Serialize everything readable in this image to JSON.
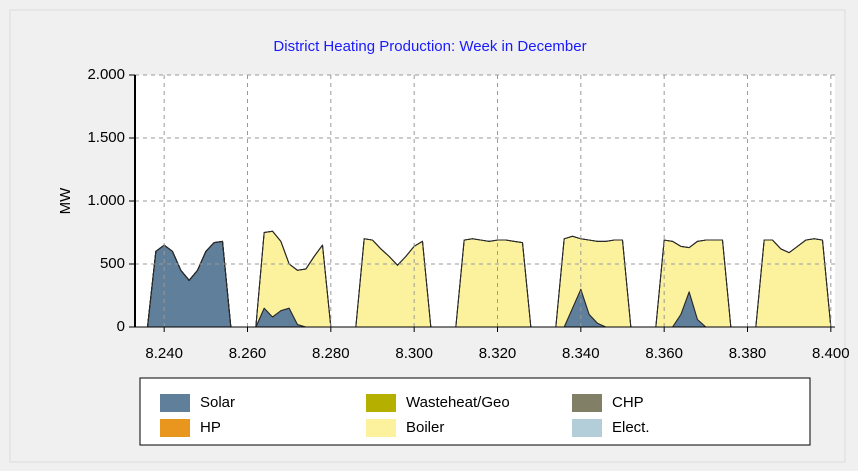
{
  "chart_data": {
    "type": "stacked_area",
    "title": "District Heating Production: Week in December",
    "y_label": "MW",
    "x": [
      8234,
      8236,
      8238,
      8240,
      8242,
      8244,
      8246,
      8248,
      8250,
      8252,
      8254,
      8256,
      8258,
      8260,
      8262,
      8264,
      8266,
      8268,
      8270,
      8272,
      8274,
      8276,
      8278,
      8280,
      8282,
      8284,
      8286,
      8288,
      8290,
      8292,
      8294,
      8296,
      8298,
      8300,
      8302,
      8304,
      8306,
      8308,
      8310,
      8312,
      8314,
      8316,
      8318,
      8320,
      8322,
      8324,
      8326,
      8328,
      8330,
      8332,
      8334,
      8336,
      8338,
      8340,
      8342,
      8344,
      8346,
      8348,
      8350,
      8352,
      8354,
      8356,
      8358,
      8360,
      8362,
      8364,
      8366,
      8368,
      8370,
      8372,
      8374,
      8376,
      8378,
      8380,
      8382,
      8384,
      8386,
      8388,
      8390,
      8392,
      8394,
      8396,
      8398,
      8400
    ],
    "series": [
      {
        "name": "Solar",
        "color": "#5f7f9b",
        "values": [
          0,
          0,
          600,
          650,
          600,
          450,
          370,
          450,
          600,
          670,
          680,
          0,
          0,
          0,
          0,
          150,
          80,
          130,
          150,
          20,
          0,
          0,
          0,
          0,
          0,
          0,
          0,
          0,
          0,
          0,
          0,
          0,
          0,
          0,
          0,
          0,
          0,
          0,
          0,
          0,
          0,
          0,
          0,
          0,
          0,
          0,
          0,
          0,
          0,
          0,
          0,
          0,
          150,
          300,
          100,
          30,
          0,
          0,
          0,
          0,
          0,
          0,
          0,
          0,
          0,
          100,
          280,
          60,
          0,
          0,
          0,
          0,
          0,
          0,
          0,
          0,
          0,
          0,
          0,
          0,
          0,
          0,
          0,
          0
        ]
      },
      {
        "name": "HP",
        "color": "#e8961e",
        "values": [
          0,
          0,
          0,
          0,
          0,
          0,
          0,
          0,
          0,
          0,
          0,
          0,
          0,
          0,
          0,
          0,
          0,
          0,
          0,
          0,
          0,
          0,
          0,
          0,
          0,
          0,
          0,
          0,
          0,
          0,
          0,
          0,
          0,
          0,
          0,
          0,
          0,
          0,
          0,
          0,
          0,
          0,
          0,
          0,
          0,
          0,
          0,
          0,
          0,
          0,
          0,
          0,
          0,
          0,
          0,
          0,
          0,
          0,
          0,
          0,
          0,
          0,
          0,
          0,
          0,
          0,
          0,
          0,
          0,
          0,
          0,
          0,
          0,
          0,
          0,
          0,
          0,
          0,
          0,
          0,
          0,
          0,
          0,
          0
        ]
      },
      {
        "name": "Wasteheat/Geo",
        "color": "#b5b000",
        "values": [
          0,
          0,
          0,
          0,
          0,
          0,
          0,
          0,
          0,
          0,
          0,
          0,
          0,
          0,
          0,
          0,
          0,
          0,
          0,
          0,
          0,
          0,
          0,
          0,
          0,
          0,
          0,
          0,
          0,
          0,
          0,
          0,
          0,
          0,
          0,
          0,
          0,
          0,
          0,
          0,
          0,
          0,
          0,
          0,
          0,
          0,
          0,
          0,
          0,
          0,
          0,
          0,
          0,
          0,
          0,
          0,
          0,
          0,
          0,
          0,
          0,
          0,
          0,
          0,
          0,
          0,
          0,
          0,
          0,
          0,
          0,
          0,
          0,
          0,
          0,
          0,
          0,
          0,
          0,
          0,
          0,
          0,
          0,
          0
        ]
      },
      {
        "name": "Boiler",
        "color": "#fcf29e",
        "values": [
          0,
          0,
          0,
          0,
          0,
          0,
          0,
          0,
          0,
          0,
          0,
          0,
          0,
          0,
          0,
          600,
          680,
          550,
          350,
          430,
          460,
          560,
          650,
          0,
          0,
          0,
          0,
          700,
          690,
          620,
          560,
          490,
          560,
          640,
          680,
          0,
          0,
          0,
          0,
          690,
          700,
          690,
          680,
          690,
          690,
          680,
          670,
          0,
          0,
          0,
          0,
          700,
          570,
          400,
          590,
          650,
          680,
          690,
          690,
          0,
          0,
          0,
          0,
          690,
          680,
          540,
          350,
          620,
          690,
          690,
          690,
          0,
          0,
          0,
          0,
          690,
          690,
          620,
          590,
          640,
          690,
          700,
          690,
          0
        ]
      },
      {
        "name": "CHP",
        "color": "#817f66",
        "values": [
          0,
          0,
          0,
          0,
          0,
          0,
          0,
          0,
          0,
          0,
          0,
          0,
          0,
          0,
          0,
          0,
          0,
          0,
          0,
          0,
          0,
          0,
          0,
          0,
          0,
          0,
          0,
          0,
          0,
          0,
          0,
          0,
          0,
          0,
          0,
          0,
          0,
          0,
          0,
          0,
          0,
          0,
          0,
          0,
          0,
          0,
          0,
          0,
          0,
          0,
          0,
          0,
          0,
          0,
          0,
          0,
          0,
          0,
          0,
          0,
          0,
          0,
          0,
          0,
          0,
          0,
          0,
          0,
          0,
          0,
          0,
          0,
          0,
          0,
          0,
          0,
          0,
          0,
          0,
          0,
          0,
          0,
          0,
          0
        ]
      },
      {
        "name": "Elect.",
        "color": "#b3cdd9",
        "values": [
          0,
          0,
          0,
          0,
          0,
          0,
          0,
          0,
          0,
          0,
          0,
          0,
          0,
          0,
          0,
          0,
          0,
          0,
          0,
          0,
          0,
          0,
          0,
          0,
          0,
          0,
          0,
          0,
          0,
          0,
          0,
          0,
          0,
          0,
          0,
          0,
          0,
          0,
          0,
          0,
          0,
          0,
          0,
          0,
          0,
          0,
          0,
          0,
          0,
          0,
          0,
          0,
          0,
          0,
          0,
          0,
          0,
          0,
          0,
          0,
          0,
          0,
          0,
          0,
          0,
          0,
          0,
          0,
          0,
          0,
          0,
          0,
          0,
          0,
          0,
          0,
          0,
          0,
          0,
          0,
          0,
          0,
          0,
          0
        ]
      }
    ],
    "xlim": [
      8233,
      8401
    ],
    "xticks": [
      {
        "value": 8240,
        "label": "8.240"
      },
      {
        "value": 8260,
        "label": "8.260"
      },
      {
        "value": 8280,
        "label": "8.280"
      },
      {
        "value": 8300,
        "label": "8.300"
      },
      {
        "value": 8320,
        "label": "8.320"
      },
      {
        "value": 8340,
        "label": "8.340"
      },
      {
        "value": 8360,
        "label": "8.360"
      },
      {
        "value": 8380,
        "label": "8.380"
      },
      {
        "value": 8400,
        "label": "8.400"
      }
    ],
    "ylim": [
      0,
      2000
    ],
    "yticks": [
      0,
      500,
      {
        "value": 1000,
        "label": "1.000"
      },
      {
        "value": 1500,
        "label": "1.500"
      },
      {
        "value": 2000,
        "label": "2.000"
      }
    ],
    "grid": true
  }
}
